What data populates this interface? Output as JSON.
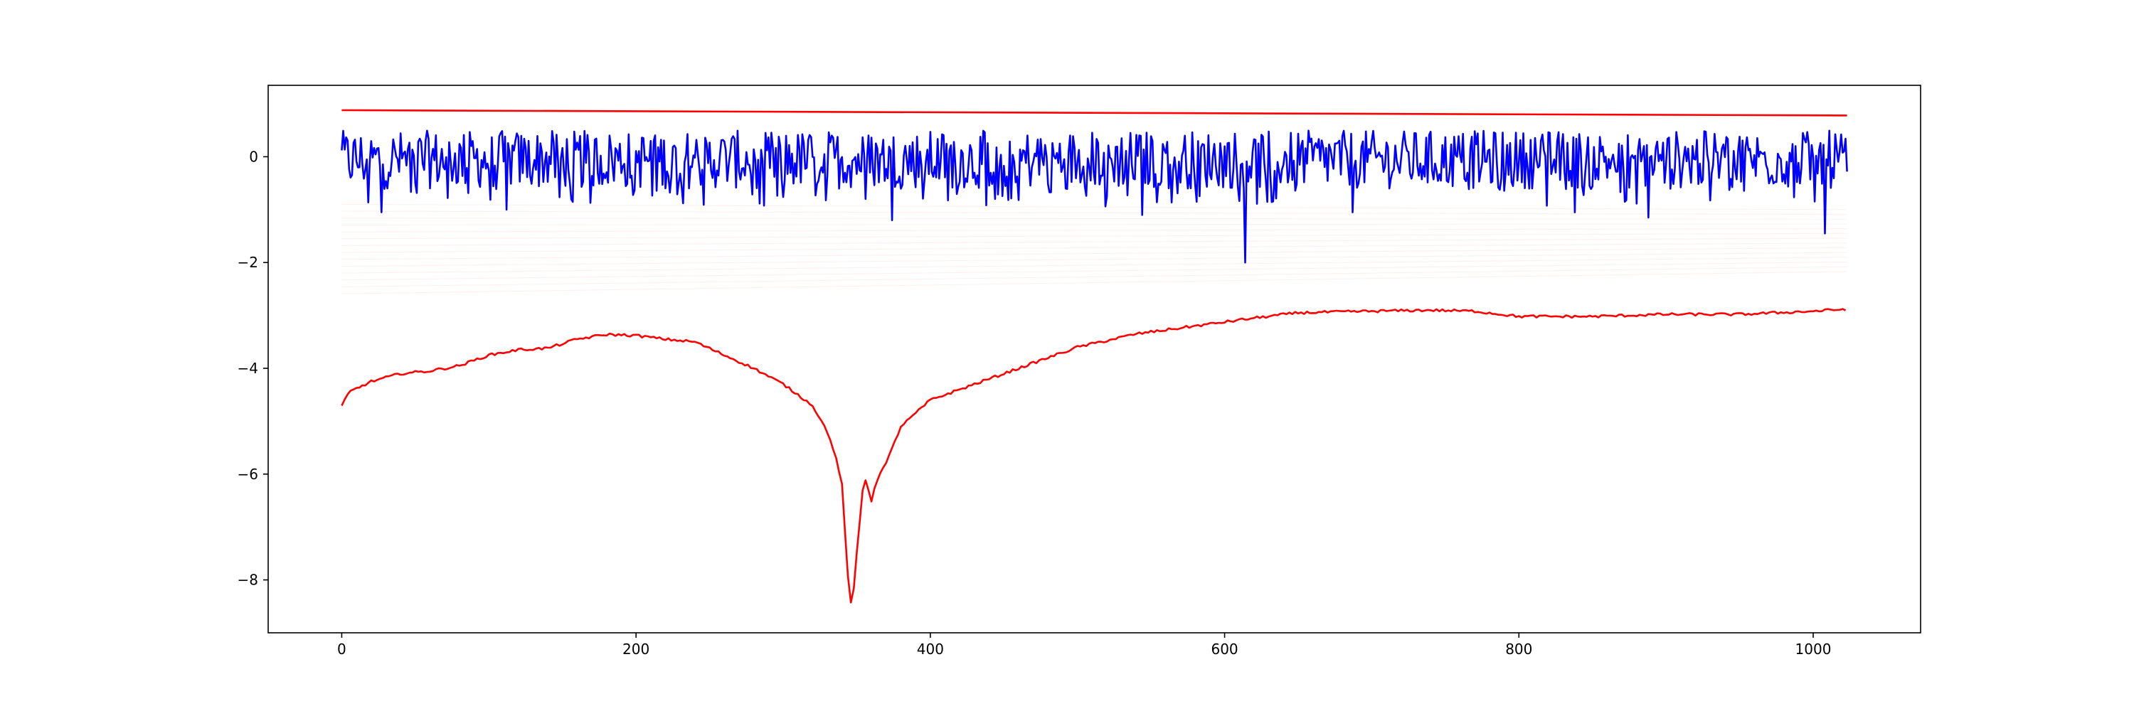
{
  "chart_data": {
    "type": "line",
    "title": "",
    "xlabel": "",
    "ylabel": "",
    "xlim": [
      -50,
      1073
    ],
    "ylim": [
      -9.0,
      1.35
    ],
    "grid": false,
    "legend": "none",
    "x_ticks": [
      0,
      200,
      400,
      600,
      800,
      1000
    ],
    "x_tick_labels": [
      "0",
      "200",
      "400",
      "600",
      "800",
      "1000"
    ],
    "y_ticks": [
      -8,
      -6,
      -4,
      -2,
      0
    ],
    "y_tick_labels": [
      "−8",
      "−6",
      "−4",
      "−2",
      "0"
    ],
    "series": [
      {
        "color": "#ff0000",
        "style": "line",
        "x": [
          0,
          1023
        ],
        "y": [
          0.88,
          0.78
        ]
      },
      {
        "color": "#0000ff",
        "style": "noisy-line",
        "x_range": [
          0,
          1023
        ],
        "baseline": 0.0,
        "max": 0.6,
        "min": -2.0,
        "notable_dips": [
          {
            "x": 27,
            "y": -1.05
          },
          {
            "x": 112,
            "y": -1.0
          },
          {
            "x": 374,
            "y": -1.2
          },
          {
            "x": 544,
            "y": -1.1
          },
          {
            "x": 614,
            "y": -2.0
          },
          {
            "x": 687,
            "y": -1.05
          },
          {
            "x": 838,
            "y": -1.05
          },
          {
            "x": 888,
            "y": -1.15
          },
          {
            "x": 1008,
            "y": -1.45
          }
        ]
      },
      {
        "color": "#ff0000",
        "style": "line",
        "x": [
          0,
          5,
          20,
          40,
          60,
          80,
          100,
          120,
          140,
          160,
          180,
          200,
          220,
          240,
          260,
          280,
          300,
          310,
          320,
          330,
          335,
          340,
          343,
          345,
          347,
          350,
          355,
          360,
          365,
          370,
          380,
          400,
          420,
          450,
          480,
          500,
          540,
          580,
          620,
          650,
          700,
          740,
          770,
          800,
          850,
          900,
          950,
          1000,
          1023
        ],
        "y": [
          -4.72,
          -4.45,
          -4.25,
          -4.1,
          -4.05,
          -3.95,
          -3.75,
          -3.65,
          -3.62,
          -3.45,
          -3.36,
          -3.38,
          -3.45,
          -3.5,
          -3.75,
          -4.0,
          -4.3,
          -4.5,
          -4.7,
          -5.2,
          -5.6,
          -6.2,
          -7.5,
          -8.4,
          -8.5,
          -7.5,
          -6.0,
          -6.5,
          -6.0,
          -5.8,
          -5.1,
          -4.6,
          -4.4,
          -4.1,
          -3.8,
          -3.6,
          -3.35,
          -3.2,
          -3.05,
          -2.95,
          -2.92,
          -2.9,
          -2.92,
          -3.02,
          -3.02,
          -2.98,
          -2.98,
          -2.92,
          -2.88
        ]
      }
    ]
  }
}
